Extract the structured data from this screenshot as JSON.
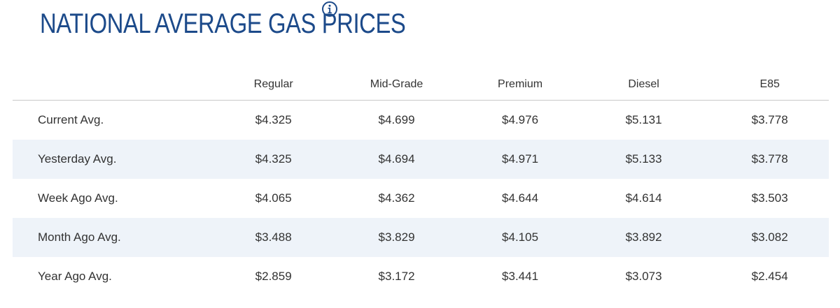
{
  "header": {
    "title": "NATIONAL AVERAGE GAS PRICES",
    "info_icon": "info-icon",
    "accent_color": "#1c4a8a"
  },
  "table": {
    "columns": [
      "",
      "Regular",
      "Mid-Grade",
      "Premium",
      "Diesel",
      "E85"
    ],
    "rows": [
      {
        "label": "Current Avg.",
        "values": [
          "$4.325",
          "$4.699",
          "$4.976",
          "$5.131",
          "$3.778"
        ]
      },
      {
        "label": "Yesterday Avg.",
        "values": [
          "$4.325",
          "$4.694",
          "$4.971",
          "$5.133",
          "$3.778"
        ]
      },
      {
        "label": "Week Ago Avg.",
        "values": [
          "$4.065",
          "$4.362",
          "$4.644",
          "$4.614",
          "$3.503"
        ]
      },
      {
        "label": "Month Ago Avg.",
        "values": [
          "$3.488",
          "$3.829",
          "$4.105",
          "$3.892",
          "$3.082"
        ]
      },
      {
        "label": "Year Ago Avg.",
        "values": [
          "$2.859",
          "$3.172",
          "$3.441",
          "$3.073",
          "$2.454"
        ]
      }
    ],
    "alt_row_color": "#eef3f9"
  }
}
